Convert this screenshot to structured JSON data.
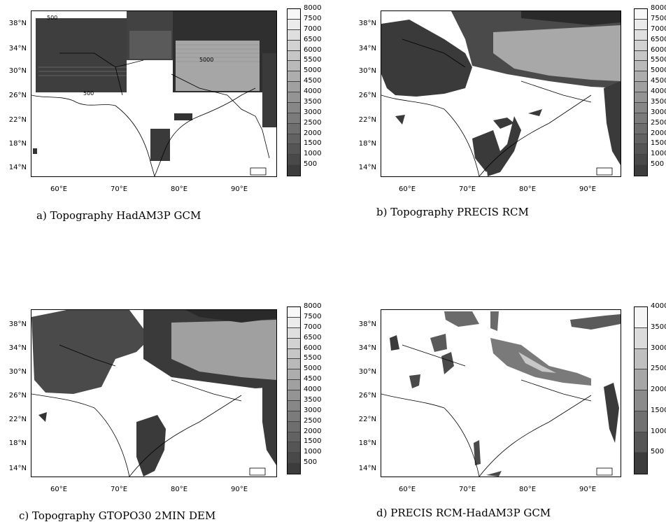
{
  "captions": {
    "a": "a) Topography HadAM3P GCM",
    "b": "b) Topography PRECIS RCM",
    "c": "c) Topography GTOPO30 2MIN DEM",
    "d": "d) PRECIS RCM-HadAM3P GCM"
  },
  "axes": {
    "lat_labels": [
      "38°N",
      "34°N",
      "30°N",
      "26°N",
      "22°N",
      "18°N",
      "14°N"
    ],
    "lon_labels": [
      "60°E",
      "70°E",
      "80°E",
      "90°E"
    ]
  },
  "colorbars": {
    "topo": [
      "8000",
      "7500",
      "7000",
      "6500",
      "6000",
      "5500",
      "5000",
      "4500",
      "4000",
      "3500",
      "3000",
      "2500",
      "2000",
      "1500",
      "1000",
      "500"
    ],
    "b_topo": [
      "8000",
      "7500",
      "7000",
      "6500",
      "6000",
      "5500",
      "5000",
      "4500",
      "4000",
      "3500",
      "3000",
      "2500",
      "2000",
      "1500",
      "1000",
      "500"
    ],
    "diff": [
      "4000",
      "3500",
      "3000",
      "2500",
      "2000",
      "1500",
      "1000",
      "500"
    ]
  },
  "contour_labels": {
    "a_top_left": "500",
    "a_center": "5000",
    "a_bottom": "500"
  },
  "colors": {
    "dark": "#3a3a3a",
    "mid": "#6e6e6e",
    "light": "#b8b8b8",
    "lighter": "#d6d6d6"
  }
}
